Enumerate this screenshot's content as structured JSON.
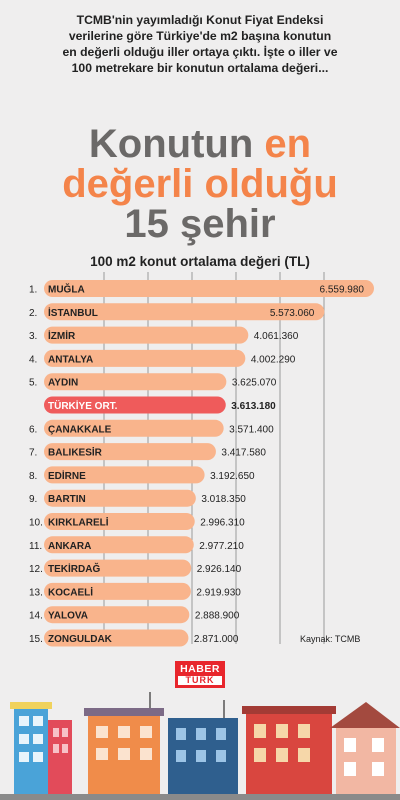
{
  "intro": {
    "line1": "TCMB'nin yayımladığı Konut Fiyat Endeksi",
    "line2": "verilerine göre Türkiye'de m2 başına konutun",
    "line3": "en değerli olduğu iller ortaya çıktı. İşte o iller ve",
    "line4": "100 metrekare bir konutun ortalama değeri..."
  },
  "headline": {
    "part1": "Konutun",
    "part2": "en",
    "part3": "değerli olduğu",
    "part4": "15 şehir"
  },
  "chart_data": {
    "type": "bar",
    "orientation": "horizontal",
    "title": "100 m2  konut ortalama değeri (TL)",
    "categories": [
      "MUĞLA",
      "İSTANBUL",
      "İZMİR",
      "ANTALYA",
      "AYDIN",
      "TÜRKİYE ORT.",
      "ÇANAKKALE",
      "BALIKESİR",
      "EDİRNE",
      "BARTIN",
      "KIRKLARELİ",
      "ANKARA",
      "TEKİRDAĞ",
      "KOCAELİ",
      "YALOVA",
      "ZONGULDAK"
    ],
    "ranks": [
      "1.",
      "2.",
      "3.",
      "4.",
      "5.",
      "",
      "6.",
      "7.",
      "8.",
      "9.",
      "10.",
      "11.",
      "12.",
      "13.",
      "14.",
      "15."
    ],
    "values": [
      6559980,
      5573060,
      4061360,
      4002290,
      3625070,
      3613180,
      3571400,
      3417580,
      3192650,
      3018350,
      2996310,
      2977210,
      2926140,
      2919930,
      2888900,
      2871000
    ],
    "value_labels": [
      "6.559.980",
      "5.573.060",
      "4.061.360",
      "4.002.290",
      "3.625.070",
      "3.613.180",
      "3.571.400",
      "3.417.580",
      "3.192.650",
      "3.018.350",
      "2.996.310",
      "2.977.210",
      "2.926.140",
      "2.919.930",
      "2.888.900",
      "2.871.000"
    ],
    "highlight_category": "TÜRKİYE ORT.",
    "grid": true,
    "colors": {
      "bar": "#f9b48c",
      "highlight": "#ef5b5b",
      "grid": "#9a9a9a"
    }
  },
  "source": "Kaynak: TCMB",
  "logo": {
    "top": "HABER",
    "bottom": "TÜRK"
  },
  "colors": {
    "background": "#efeeee",
    "headline_dark": "#6b6968",
    "headline_accent": "#f4844a"
  }
}
